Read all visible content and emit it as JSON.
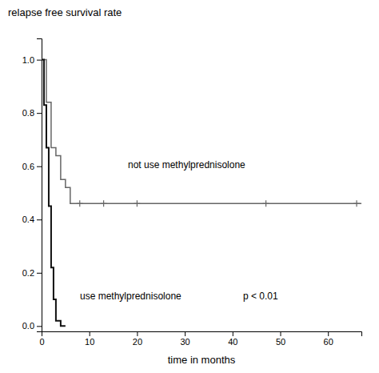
{
  "chart_data": {
    "type": "line",
    "title": "relapse free survival rate",
    "xlabel": "time in months",
    "xlim": [
      0,
      67
    ],
    "ylim": [
      -0.02,
      1.08
    ],
    "xticks": [
      0,
      10,
      20,
      30,
      40,
      50,
      60
    ],
    "yticks": [
      {
        "value": 0.0,
        "label": "0.0"
      },
      0.2,
      0.4,
      0.6,
      0.8,
      {
        "value": 1.0,
        "label": "1.0"
      }
    ],
    "grid": false,
    "series": [
      {
        "type": "line",
        "line_style": "step",
        "color": "#666666",
        "x": [
          0,
          1,
          1,
          2,
          2,
          3,
          3,
          4,
          4,
          5,
          5,
          6,
          6,
          7,
          7,
          67
        ],
        "values": [
          1.0,
          1.0,
          0.84,
          0.84,
          0.67,
          0.67,
          0.64,
          0.64,
          0.55,
          0.55,
          0.52,
          0.52,
          0.46,
          0.46,
          0.46,
          0.46
        ]
      },
      {
        "type": "scatter",
        "marker": "+",
        "color": "#666666",
        "x": [
          8,
          13,
          20,
          47,
          66
        ],
        "values": [
          0.46,
          0.46,
          0.46,
          0.46,
          0.46
        ]
      },
      {
        "type": "line",
        "line_style": "step",
        "color": "#111111",
        "x": [
          0,
          0.5,
          0.5,
          1.0,
          1.0,
          1.5,
          1.5,
          2.0,
          2.0,
          2.5,
          2.5,
          3.0,
          3.0,
          4.0,
          4.0,
          5.0
        ],
        "values": [
          1.0,
          1.0,
          0.83,
          0.83,
          0.67,
          0.67,
          0.45,
          0.45,
          0.22,
          0.22,
          0.1,
          0.1,
          0.02,
          0.02,
          0.0,
          0.0
        ]
      }
    ],
    "annotations": [
      "not use methylprednisolone",
      "use methylprednisolone",
      "p < 0.01"
    ]
  }
}
